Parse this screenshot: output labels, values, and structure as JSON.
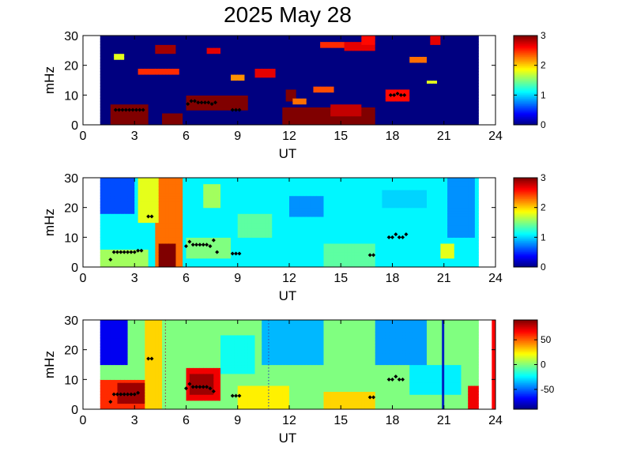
{
  "title": "2025 May 28",
  "chart_data": [
    {
      "type": "heatmap",
      "panel": 1,
      "xlabel": "UT",
      "ylabel": "mHz",
      "xlim": [
        0,
        24
      ],
      "ylim": [
        0,
        30
      ],
      "xticks": [
        "0",
        "3",
        "6",
        "9",
        "12",
        "15",
        "18",
        "21",
        "24"
      ],
      "yticks": [
        "0",
        "10",
        "20",
        "30"
      ],
      "data_extent": [
        1,
        23
      ],
      "colormap": "jet",
      "clim": [
        0,
        3
      ],
      "colorbar_ticks": [
        "0",
        "1",
        "2",
        "3"
      ],
      "background_value": 0,
      "blobs": [
        {
          "x": [
            1.7,
            3.7
          ],
          "y": [
            0,
            7
          ],
          "value": 3
        },
        {
          "x": [
            4.7,
            5.7
          ],
          "y": [
            0,
            4
          ],
          "value": 3
        },
        {
          "x": [
            6.1,
            9.6
          ],
          "y": [
            5,
            10
          ],
          "value": 3
        },
        {
          "x": [
            11.6,
            17.0
          ],
          "y": [
            0,
            6
          ],
          "value": 3
        },
        {
          "x": [
            11.8,
            12.4
          ],
          "y": [
            8,
            12
          ],
          "value": 3
        },
        {
          "x": [
            14.5,
            16.2
          ],
          "y": [
            3,
            7
          ],
          "value": 2.8
        },
        {
          "x": [
            4.2,
            5.3
          ],
          "y": [
            24,
            27
          ],
          "value": 2.9
        },
        {
          "x": [
            3.2,
            5.5
          ],
          "y": [
            17,
            19
          ],
          "value": 2.5
        },
        {
          "x": [
            10.1,
            11.2
          ],
          "y": [
            16,
            18.5
          ],
          "value": 2.7
        },
        {
          "x": [
            7.3,
            8.1
          ],
          "y": [
            24,
            26
          ],
          "value": 2.7
        },
        {
          "x": [
            15.2,
            17.0
          ],
          "y": [
            25,
            28
          ],
          "value": 2.7
        },
        {
          "x": [
            13.8,
            15.2
          ],
          "y": [
            26,
            28
          ],
          "value": 2.5
        },
        {
          "x": [
            13.5,
            14.5
          ],
          "y": [
            11,
            13
          ],
          "value": 2.4
        },
        {
          "x": [
            17.7,
            19.0
          ],
          "y": [
            8.5,
            12
          ],
          "value": 2.6
        },
        {
          "x": [
            20.3,
            20.8
          ],
          "y": [
            27,
            30
          ],
          "value": 2.7
        },
        {
          "x": [
            16.3,
            17.0
          ],
          "y": [
            27,
            30
          ],
          "value": 2.6
        },
        {
          "x": [
            19.0,
            20.0
          ],
          "y": [
            21.5,
            23
          ],
          "value": 2.3
        },
        {
          "x": [
            8.7,
            9.4
          ],
          "y": [
            15.5,
            17
          ],
          "value": 2.2
        },
        {
          "x": [
            12.2,
            13.0
          ],
          "y": [
            7,
            9
          ],
          "value": 2.3
        },
        {
          "x": [
            1.9,
            2.3
          ],
          "y": [
            22.5,
            24
          ],
          "value": 1.8
        },
        {
          "x": [
            20.0,
            20.6
          ],
          "y": [
            14,
            15
          ],
          "value": 1.8
        }
      ],
      "markers": [
        {
          "x": 1.9,
          "y": 5
        },
        {
          "x": 2.1,
          "y": 5
        },
        {
          "x": 2.3,
          "y": 5
        },
        {
          "x": 2.5,
          "y": 5
        },
        {
          "x": 2.7,
          "y": 5
        },
        {
          "x": 2.9,
          "y": 5
        },
        {
          "x": 3.1,
          "y": 5
        },
        {
          "x": 3.3,
          "y": 5
        },
        {
          "x": 3.5,
          "y": 5
        },
        {
          "x": 6.1,
          "y": 7
        },
        {
          "x": 6.3,
          "y": 8
        },
        {
          "x": 6.5,
          "y": 8
        },
        {
          "x": 6.7,
          "y": 7.5
        },
        {
          "x": 6.9,
          "y": 7.5
        },
        {
          "x": 7.1,
          "y": 7.5
        },
        {
          "x": 7.3,
          "y": 7.5
        },
        {
          "x": 7.5,
          "y": 7
        },
        {
          "x": 7.7,
          "y": 7.5
        },
        {
          "x": 8.7,
          "y": 5
        },
        {
          "x": 8.9,
          "y": 5
        },
        {
          "x": 9.1,
          "y": 5
        },
        {
          "x": 17.9,
          "y": 10
        },
        {
          "x": 18.1,
          "y": 10
        },
        {
          "x": 18.3,
          "y": 10.5
        },
        {
          "x": 18.5,
          "y": 10
        },
        {
          "x": 18.7,
          "y": 10
        }
      ]
    },
    {
      "type": "heatmap",
      "panel": 2,
      "xlabel": "UT",
      "ylabel": "mHz",
      "xlim": [
        0,
        24
      ],
      "ylim": [
        0,
        30
      ],
      "xticks": [
        "0",
        "3",
        "6",
        "9",
        "12",
        "15",
        "18",
        "21",
        "24"
      ],
      "yticks": [
        "0",
        "10",
        "20",
        "30"
      ],
      "data_extent": [
        1,
        23
      ],
      "colormap": "jet",
      "clim": [
        0,
        3
      ],
      "colorbar_ticks": [
        "0",
        "1",
        "2",
        "3"
      ],
      "background_value": 1.1,
      "blobs": [
        {
          "x": [
            4.3,
            5.7
          ],
          "y": [
            0,
            30
          ],
          "value": 2.3
        },
        {
          "x": [
            4.5,
            5.4
          ],
          "y": [
            0,
            8
          ],
          "value": 3
        },
        {
          "x": [
            3.2,
            4.4
          ],
          "y": [
            15,
            30
          ],
          "value": 1.8
        },
        {
          "x": [
            1.1,
            3.8
          ],
          "y": [
            0,
            6
          ],
          "value": 1.6
        },
        {
          "x": [
            7.0,
            8.0
          ],
          "y": [
            20,
            28
          ],
          "value": 1.6
        },
        {
          "x": [
            6.0,
            8.5
          ],
          "y": [
            3,
            10
          ],
          "value": 1.5
        },
        {
          "x": [
            20.8,
            21.7
          ],
          "y": [
            3,
            8
          ],
          "value": 1.8
        },
        {
          "x": [
            1.1,
            3.0
          ],
          "y": [
            18,
            30
          ],
          "value": 0.6
        },
        {
          "x": [
            12.0,
            14.0
          ],
          "y": [
            17,
            24
          ],
          "value": 0.8
        },
        {
          "x": [
            21.3,
            22.8
          ],
          "y": [
            10,
            30
          ],
          "value": 0.8
        },
        {
          "x": [
            9.0,
            11.0
          ],
          "y": [
            10,
            18
          ],
          "value": 1.4
        },
        {
          "x": [
            14.0,
            17.0
          ],
          "y": [
            0,
            8
          ],
          "value": 1.4
        },
        {
          "x": [
            17.5,
            20.0
          ],
          "y": [
            20,
            26
          ],
          "value": 1.0
        }
      ],
      "markers": [
        {
          "x": 1.6,
          "y": 2.5
        },
        {
          "x": 1.8,
          "y": 5
        },
        {
          "x": 2.0,
          "y": 5
        },
        {
          "x": 2.2,
          "y": 5
        },
        {
          "x": 2.4,
          "y": 5
        },
        {
          "x": 2.6,
          "y": 5
        },
        {
          "x": 2.8,
          "y": 5
        },
        {
          "x": 3.0,
          "y": 5
        },
        {
          "x": 3.2,
          "y": 5.5
        },
        {
          "x": 3.4,
          "y": 5.5
        },
        {
          "x": 3.8,
          "y": 17
        },
        {
          "x": 4.0,
          "y": 17
        },
        {
          "x": 6.0,
          "y": 7
        },
        {
          "x": 6.2,
          "y": 8.5
        },
        {
          "x": 6.4,
          "y": 7.5
        },
        {
          "x": 6.6,
          "y": 7.5
        },
        {
          "x": 6.8,
          "y": 7.5
        },
        {
          "x": 7.0,
          "y": 7.5
        },
        {
          "x": 7.2,
          "y": 7.5
        },
        {
          "x": 7.4,
          "y": 7
        },
        {
          "x": 7.6,
          "y": 9
        },
        {
          "x": 7.8,
          "y": 5
        },
        {
          "x": 8.7,
          "y": 4.5
        },
        {
          "x": 8.9,
          "y": 4.5
        },
        {
          "x": 9.1,
          "y": 4.5
        },
        {
          "x": 16.7,
          "y": 4
        },
        {
          "x": 16.9,
          "y": 4
        },
        {
          "x": 17.8,
          "y": 10
        },
        {
          "x": 18.0,
          "y": 10
        },
        {
          "x": 18.2,
          "y": 11
        },
        {
          "x": 18.4,
          "y": 10
        },
        {
          "x": 18.6,
          "y": 10
        },
        {
          "x": 18.8,
          "y": 11
        }
      ]
    },
    {
      "type": "heatmap",
      "panel": 3,
      "xlabel": "UT",
      "ylabel": "mHz",
      "xlim": [
        0,
        24
      ],
      "ylim": [
        0,
        30
      ],
      "xticks": [
        "0",
        "3",
        "6",
        "9",
        "12",
        "15",
        "18",
        "21",
        "24"
      ],
      "yticks": [
        "0",
        "10",
        "20",
        "30"
      ],
      "data_extent": [
        1,
        23
      ],
      "colormap": "jet",
      "clim": [
        -90,
        90
      ],
      "colorbar_ticks": [
        "50",
        "0",
        "-50"
      ],
      "colorbar_tick_values": [
        50,
        0,
        -50
      ],
      "background_value": 0,
      "blobs": [
        {
          "x": [
            1.1,
            3.6
          ],
          "y": [
            0,
            10
          ],
          "value": 60
        },
        {
          "x": [
            2.0,
            3.5
          ],
          "y": [
            2,
            9
          ],
          "value": 85
        },
        {
          "x": [
            6.0,
            8.0
          ],
          "y": [
            3,
            14
          ],
          "value": 70
        },
        {
          "x": [
            6.3,
            7.5
          ],
          "y": [
            5,
            12
          ],
          "value": 85
        },
        {
          "x": [
            3.6,
            4.6
          ],
          "y": [
            0,
            30
          ],
          "value": 30
        },
        {
          "x": [
            9.0,
            12.0
          ],
          "y": [
            0,
            8
          ],
          "value": 25
        },
        {
          "x": [
            14.0,
            17.0
          ],
          "y": [
            0,
            6
          ],
          "value": 30
        },
        {
          "x": [
            22.5,
            23.0
          ],
          "y": [
            0,
            8
          ],
          "value": 70
        },
        {
          "x": [
            1.1,
            2.5
          ],
          "y": [
            15,
            30
          ],
          "value": -70
        },
        {
          "x": [
            10.5,
            14.0
          ],
          "y": [
            15,
            30
          ],
          "value": -35
        },
        {
          "x": [
            17.0,
            20.0
          ],
          "y": [
            15,
            30
          ],
          "value": -40
        },
        {
          "x": [
            19.0,
            22.0
          ],
          "y": [
            5,
            15
          ],
          "value": -25
        },
        {
          "x": [
            8.0,
            10.0
          ],
          "y": [
            12,
            25
          ],
          "value": -20
        }
      ],
      "vertical_lines": [
        {
          "x": 4.8,
          "color": "#a04040",
          "style": "dotted"
        },
        {
          "x": 10.8,
          "color": "#3050b0",
          "style": "dotted"
        },
        {
          "x": 20.95,
          "color": "#0020c0",
          "style": "solid"
        },
        {
          "x": 23.9,
          "color": "#ff0000",
          "style": "solid-outside"
        }
      ],
      "markers": [
        {
          "x": 1.6,
          "y": 2.5
        },
        {
          "x": 1.8,
          "y": 5
        },
        {
          "x": 2.0,
          "y": 5
        },
        {
          "x": 2.2,
          "y": 5
        },
        {
          "x": 2.4,
          "y": 5
        },
        {
          "x": 2.6,
          "y": 5
        },
        {
          "x": 2.8,
          "y": 5
        },
        {
          "x": 3.0,
          "y": 5
        },
        {
          "x": 3.2,
          "y": 5.5
        },
        {
          "x": 3.8,
          "y": 17
        },
        {
          "x": 4.0,
          "y": 17
        },
        {
          "x": 6.0,
          "y": 7
        },
        {
          "x": 6.2,
          "y": 8.5
        },
        {
          "x": 6.4,
          "y": 7.5
        },
        {
          "x": 6.6,
          "y": 7.5
        },
        {
          "x": 6.8,
          "y": 7.5
        },
        {
          "x": 7.0,
          "y": 7.5
        },
        {
          "x": 7.2,
          "y": 7.5
        },
        {
          "x": 7.4,
          "y": 7
        },
        {
          "x": 7.6,
          "y": 6
        },
        {
          "x": 8.7,
          "y": 4.5
        },
        {
          "x": 8.9,
          "y": 4.5
        },
        {
          "x": 9.1,
          "y": 4.5
        },
        {
          "x": 16.7,
          "y": 4
        },
        {
          "x": 16.9,
          "y": 4
        },
        {
          "x": 17.8,
          "y": 10
        },
        {
          "x": 18.0,
          "y": 10
        },
        {
          "x": 18.2,
          "y": 11
        },
        {
          "x": 18.4,
          "y": 10
        },
        {
          "x": 18.6,
          "y": 10
        }
      ]
    }
  ]
}
